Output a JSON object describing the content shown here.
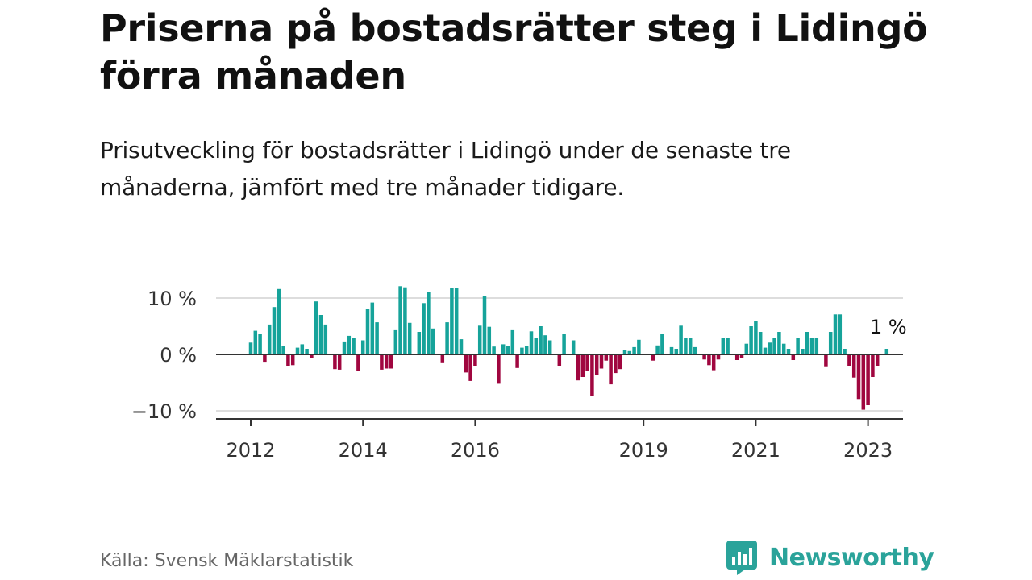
{
  "title": "Priserna på bostadsrätter steg i Lidingö förra månaden",
  "subtitle": "Prisutveckling för bostadsrätter i Lidingö under de senaste tre månaderna, jämfört med tre månader tidigare.",
  "source": "Källa: Svensk Mäklarstatistik",
  "brand": {
    "name": "Newsworthy",
    "icon": "newsworthy-logo-icon"
  },
  "colors": {
    "positive": "#16a39a",
    "negative": "#a0063f",
    "grid": "#dddddd",
    "axis": "#333333",
    "text": "#333333"
  },
  "chart_data": {
    "type": "bar",
    "start": "2012-01",
    "ylim": [
      -11,
      13
    ],
    "yticks": [
      {
        "value": 10,
        "label": "10 %"
      },
      {
        "value": 0,
        "label": "0 %"
      },
      {
        "value": -10,
        "label": "−10 %"
      }
    ],
    "xticks": [
      {
        "value": "2012-01",
        "label": "2012"
      },
      {
        "value": "2014-01",
        "label": "2014"
      },
      {
        "value": "2016-01",
        "label": "2016"
      },
      {
        "value": "2019-01",
        "label": "2019"
      },
      {
        "value": "2021-01",
        "label": "2021"
      },
      {
        "value": "2023-01",
        "label": "2023"
      }
    ],
    "annotation": {
      "label": "1 %",
      "value": 1
    },
    "grid": true,
    "legend": "none",
    "values": [
      2.1,
      4.2,
      3.6,
      -1.3,
      5.3,
      8.4,
      11.6,
      1.5,
      -2.0,
      -1.9,
      1.2,
      1.8,
      1.0,
      -0.6,
      9.4,
      7.0,
      5.3,
      0.0,
      -2.6,
      -2.7,
      2.3,
      3.3,
      2.9,
      -3.0,
      2.5,
      8.0,
      9.2,
      5.7,
      -2.7,
      -2.5,
      -2.5,
      4.3,
      12.1,
      11.9,
      5.6,
      0.0,
      4.0,
      9.1,
      11.1,
      4.6,
      0.0,
      -1.4,
      5.7,
      11.8,
      11.8,
      2.7,
      -3.2,
      -4.7,
      -2.0,
      5.1,
      10.4,
      4.9,
      1.4,
      -5.2,
      1.8,
      1.5,
      4.3,
      -2.4,
      1.2,
      1.5,
      4.1,
      2.9,
      5.0,
      3.4,
      2.5,
      0.0,
      -2.0,
      3.7,
      0.0,
      2.5,
      -4.6,
      -4.0,
      -2.9,
      -7.4,
      -3.6,
      -2.5,
      -1.1,
      -5.3,
      -3.3,
      -2.6,
      0.8,
      0.6,
      1.3,
      2.6,
      0.0,
      0.0,
      -1.1,
      1.6,
      3.6,
      0.0,
      1.3,
      1.0,
      5.1,
      3.0,
      3.0,
      1.3,
      0.0,
      -0.9,
      -1.9,
      -2.8,
      -0.9,
      3.0,
      3.0,
      0.0,
      -1.0,
      -0.7,
      1.9,
      5.0,
      6.0,
      4.0,
      1.2,
      2.1,
      2.9,
      4.0,
      1.9,
      1.0,
      -1.0,
      3.0,
      1.0,
      4.0,
      3.0,
      3.0,
      0.0,
      -2.1,
      4.0,
      7.1,
      7.1,
      1.0,
      -2.0,
      -4.1,
      -7.9,
      -9.8,
      -9.0,
      -4.0,
      -2.0,
      0.0,
      1.0
    ]
  }
}
